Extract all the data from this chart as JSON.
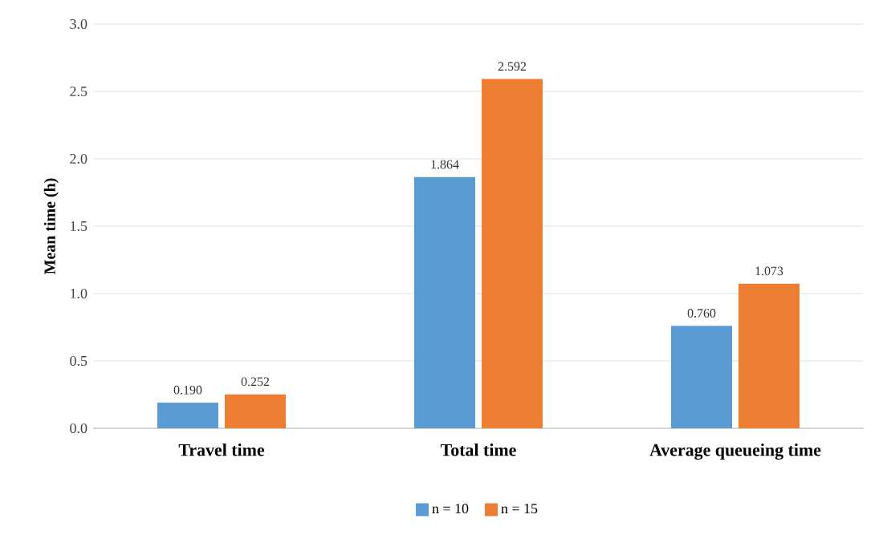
{
  "chart_data": {
    "type": "bar",
    "ylabel": "Mean time (h)",
    "categories": [
      "Travel time",
      "Total time",
      "Average queueing time"
    ],
    "series": [
      {
        "name": "n = 10",
        "color": "#5b9bd5",
        "values": [
          0.19,
          1.864,
          0.76
        ],
        "value_labels": [
          "0.190",
          "1.864",
          "0.760"
        ]
      },
      {
        "name": "n = 15",
        "color": "#ed7d31",
        "values": [
          0.252,
          2.592,
          1.073
        ],
        "value_labels": [
          "0.252",
          "2.592",
          "1.073"
        ]
      }
    ],
    "ylim": [
      0,
      3
    ],
    "yticks": [
      {
        "value": 0,
        "label": "0.0"
      },
      {
        "value": 0.5,
        "label": "0.5"
      },
      {
        "value": 1,
        "label": "1.0"
      },
      {
        "value": 1.5,
        "label": "1.5"
      },
      {
        "value": 2,
        "label": "2.0"
      },
      {
        "value": 2.5,
        "label": "2.5"
      },
      {
        "value": 3,
        "label": "3.0"
      }
    ],
    "grid": "y",
    "legend": "bottom"
  }
}
